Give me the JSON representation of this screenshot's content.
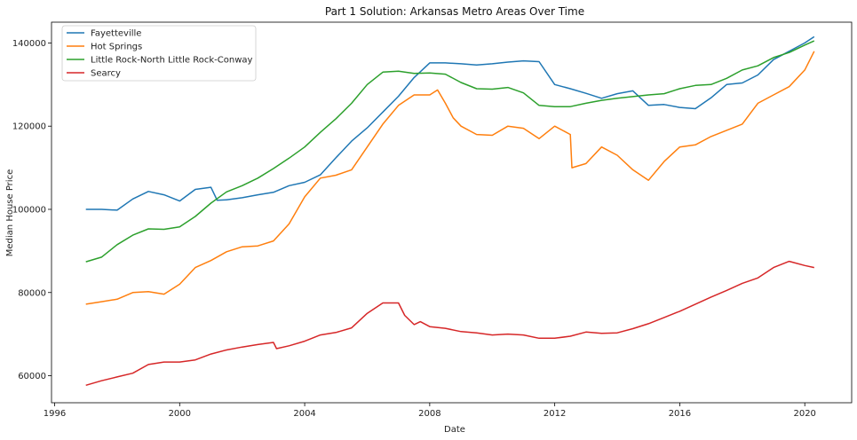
{
  "chart_data": {
    "type": "line",
    "title": "Part 1 Solution: Arkansas Metro Areas Over Time",
    "xlabel": "Date",
    "ylabel": "Median House Price",
    "xlim": [
      1995.9,
      2021.5
    ],
    "ylim": [
      53500,
      145000
    ],
    "xticks": [
      1996,
      2000,
      2004,
      2008,
      2012,
      2016,
      2020
    ],
    "yticks": [
      60000,
      80000,
      100000,
      120000,
      140000
    ],
    "grid": false,
    "legend_position": "top-left",
    "series": [
      {
        "name": "Fayetteville",
        "color": "#1f77b4",
        "x": [
          1997.0,
          1997.5,
          1998.0,
          1998.5,
          1999.0,
          1999.5,
          2000.0,
          2000.5,
          2001.0,
          2001.2,
          2001.5,
          2002.0,
          2002.5,
          2003.0,
          2003.5,
          2004.0,
          2004.5,
          2005.0,
          2005.5,
          2006.0,
          2006.5,
          2007.0,
          2007.5,
          2008.0,
          2008.5,
          2009.0,
          2009.5,
          2010.0,
          2010.5,
          2011.0,
          2011.5,
          2012.0,
          2012.5,
          2013.0,
          2013.5,
          2014.0,
          2014.5,
          2015.0,
          2015.5,
          2016.0,
          2016.5,
          2017.0,
          2017.5,
          2018.0,
          2018.5,
          2019.0,
          2019.5,
          2020.0,
          2020.3
        ],
        "y": [
          100000,
          100000,
          99800,
          102500,
          104300,
          103500,
          102000,
          104800,
          105300,
          102200,
          102300,
          102800,
          103500,
          104100,
          105700,
          106500,
          108300,
          112400,
          116400,
          119600,
          123400,
          127200,
          131700,
          135200,
          135200,
          135000,
          134700,
          135000,
          135400,
          135700,
          135500,
          130000,
          129000,
          127900,
          126700,
          127800,
          128500,
          125000,
          125200,
          124500,
          124200,
          126800,
          130000,
          130400,
          132300,
          136000,
          138000,
          140000,
          141500
        ]
      },
      {
        "name": "Hot Springs",
        "color": "#ff7f0e",
        "x": [
          1997.0,
          1997.5,
          1998.0,
          1998.5,
          1999.0,
          1999.5,
          2000.0,
          2000.5,
          2001.0,
          2001.5,
          2002.0,
          2002.5,
          2003.0,
          2003.5,
          2004.0,
          2004.5,
          2005.0,
          2005.5,
          2006.0,
          2006.5,
          2007.0,
          2007.5,
          2008.0,
          2008.25,
          2008.5,
          2008.75,
          2009.0,
          2009.5,
          2010.0,
          2010.5,
          2011.0,
          2011.5,
          2012.0,
          2012.5,
          2012.55,
          2013.0,
          2013.5,
          2014.0,
          2014.5,
          2015.0,
          2015.5,
          2016.0,
          2016.5,
          2017.0,
          2017.5,
          2018.0,
          2018.5,
          2019.0,
          2019.5,
          2020.0,
          2020.3
        ],
        "y": [
          77200,
          77800,
          78400,
          80000,
          80200,
          79600,
          82000,
          86000,
          87700,
          89800,
          91000,
          91200,
          92400,
          96500,
          103000,
          107500,
          108200,
          109500,
          115000,
          120500,
          125000,
          127500,
          127500,
          128700,
          125500,
          122000,
          120000,
          118000,
          117800,
          120000,
          119500,
          117000,
          120000,
          118000,
          110000,
          111000,
          115000,
          113000,
          109500,
          107000,
          111500,
          115000,
          115500,
          117500,
          119000,
          120500,
          125500,
          127500,
          129500,
          133500,
          138000
        ]
      },
      {
        "name": "Little Rock-North Little Rock-Conway",
        "color": "#2ca02c",
        "x": [
          1997.0,
          1997.5,
          1998.0,
          1998.5,
          1999.0,
          1999.5,
          2000.0,
          2000.5,
          2001.0,
          2001.5,
          2002.0,
          2002.5,
          2003.0,
          2003.5,
          2004.0,
          2004.5,
          2005.0,
          2005.5,
          2006.0,
          2006.5,
          2007.0,
          2007.5,
          2008.0,
          2008.5,
          2009.0,
          2009.5,
          2010.0,
          2010.5,
          2011.0,
          2011.5,
          2012.0,
          2012.5,
          2013.0,
          2013.5,
          2014.0,
          2014.5,
          2015.0,
          2015.5,
          2016.0,
          2016.5,
          2017.0,
          2017.5,
          2018.0,
          2018.5,
          2019.0,
          2019.5,
          2020.0,
          2020.3
        ],
        "y": [
          87400,
          88500,
          91500,
          93800,
          95300,
          95200,
          95800,
          98300,
          101500,
          104200,
          105700,
          107500,
          109800,
          112300,
          115000,
          118500,
          121800,
          125500,
          130000,
          133000,
          133200,
          132700,
          132800,
          132500,
          130500,
          129000,
          128900,
          129300,
          128000,
          125000,
          124700,
          124700,
          125500,
          126200,
          126700,
          127100,
          127500,
          127800,
          129000,
          129800,
          130000,
          131500,
          133500,
          134500,
          136500,
          137700,
          139500,
          140500
        ]
      },
      {
        "name": "Searcy",
        "color": "#d62728",
        "x": [
          1997.0,
          1997.5,
          1998.0,
          1998.5,
          1999.0,
          1999.5,
          2000.0,
          2000.5,
          2001.0,
          2001.5,
          2002.0,
          2002.5,
          2003.0,
          2003.1,
          2003.5,
          2004.0,
          2004.5,
          2005.0,
          2005.5,
          2006.0,
          2006.5,
          2007.0,
          2007.2,
          2007.5,
          2007.7,
          2008.0,
          2008.5,
          2009.0,
          2009.5,
          2010.0,
          2010.5,
          2011.0,
          2011.5,
          2012.0,
          2012.5,
          2013.0,
          2013.5,
          2014.0,
          2014.5,
          2015.0,
          2015.5,
          2016.0,
          2016.5,
          2017.0,
          2017.5,
          2018.0,
          2018.5,
          2019.0,
          2019.5,
          2020.0,
          2020.3
        ],
        "y": [
          57700,
          58800,
          59700,
          60600,
          62700,
          63300,
          63300,
          63800,
          65200,
          66200,
          66900,
          67500,
          68000,
          66500,
          67200,
          68300,
          69800,
          70400,
          71500,
          75000,
          77500,
          77500,
          74500,
          72300,
          73000,
          71800,
          71400,
          70600,
          70300,
          69800,
          70000,
          69800,
          69000,
          69000,
          69500,
          70500,
          70200,
          70300,
          71300,
          72500,
          74000,
          75500,
          77200,
          78900,
          80500,
          82200,
          83500,
          86000,
          87500,
          86500,
          86000
        ]
      }
    ]
  }
}
